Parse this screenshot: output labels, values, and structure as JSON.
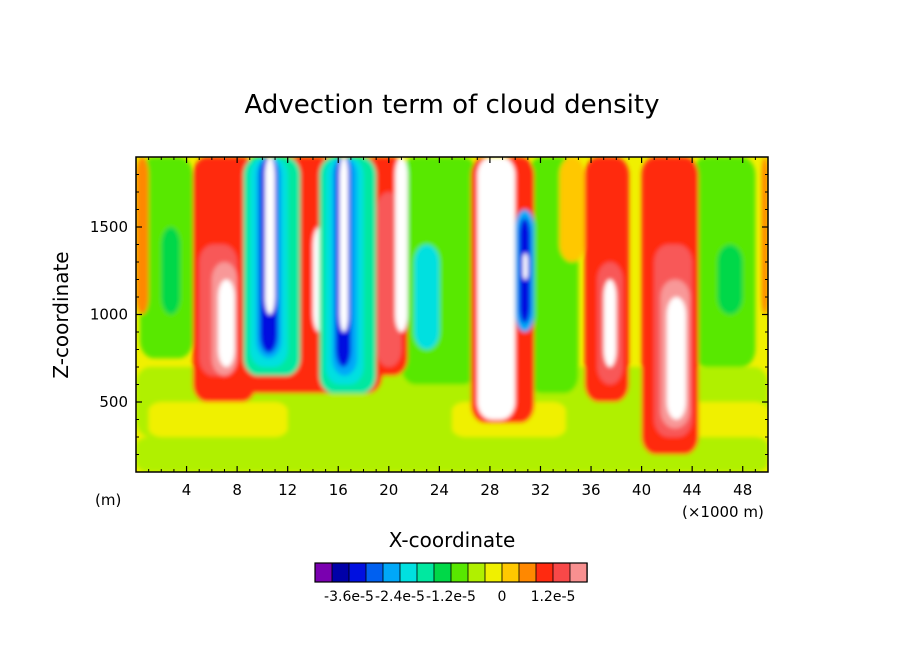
{
  "chart_data": {
    "type": "heatmap",
    "title": "Advection term of cloud density",
    "xlabel": "X-coordinate",
    "ylabel": "Z-coordinate",
    "x_unit_left": "(m)",
    "x_unit_right": "(×1000 m)",
    "xlim": [
      0,
      50
    ],
    "ylim": [
      100,
      1900
    ],
    "x_ticks": [
      4,
      8,
      12,
      16,
      20,
      24,
      28,
      32,
      36,
      40,
      44,
      48
    ],
    "y_ticks": [
      500,
      1000,
      1500
    ],
    "colorbar": {
      "colors": [
        "#7a00b0",
        "#0000a8",
        "#0010e0",
        "#0060f0",
        "#00a8f8",
        "#00e0e0",
        "#00e8a0",
        "#00d848",
        "#58e800",
        "#b0f000",
        "#f0f000",
        "#ffc800",
        "#ff8800",
        "#ff2a10",
        "#f84848",
        "#f89090"
      ],
      "labels": [
        "-3.6e-5",
        "-2.4e-5",
        "-1.2e-5",
        "0",
        "1.2e-5"
      ],
      "label_boundary_index": [
        2,
        5,
        8,
        11,
        14
      ]
    },
    "levels": {
      "white": "#ffffff",
      "pink": "#f89898",
      "salmon": "#f85858",
      "red": "#ff2a10",
      "orange": "#ff8800",
      "gold": "#ffc800",
      "yellow": "#f0f000",
      "lime": "#b0f000",
      "green": "#58e800",
      "dgreen": "#00d848",
      "teal": "#00e8a0",
      "cyan": "#00e0e0",
      "sky": "#00a8f8",
      "lblue": "#0060f0",
      "blue": "#0010e0",
      "navy": "#0000a8"
    },
    "field_background": "yellow",
    "features": [
      {
        "level": "lime",
        "x": [
          0,
          50
        ],
        "z": [
          100,
          300
        ]
      },
      {
        "level": "lime",
        "x": [
          0,
          50
        ],
        "z": [
          300,
          700
        ]
      },
      {
        "level": "yellow",
        "x": [
          1,
          12
        ],
        "z": [
          300,
          500
        ]
      },
      {
        "level": "yellow",
        "x": [
          25,
          34
        ],
        "z": [
          300,
          500
        ]
      },
      {
        "level": "yellow",
        "x": [
          43,
          50
        ],
        "z": [
          300,
          500
        ]
      },
      {
        "level": "green",
        "x": [
          0.3,
          4.5
        ],
        "z": [
          750,
          1900
        ]
      },
      {
        "level": "green",
        "x": [
          21,
          27
        ],
        "z": [
          600,
          1900
        ]
      },
      {
        "level": "green",
        "x": [
          31,
          35
        ],
        "z": [
          550,
          1900
        ]
      },
      {
        "level": "green",
        "x": [
          44,
          49
        ],
        "z": [
          700,
          1900
        ]
      },
      {
        "level": "dgreen",
        "x": [
          2,
          3.5
        ],
        "z": [
          1000,
          1500
        ]
      },
      {
        "level": "dgreen",
        "x": [
          46,
          48
        ],
        "z": [
          1000,
          1400
        ]
      },
      {
        "level": "gold",
        "x": [
          33.5,
          35.5
        ],
        "z": [
          1300,
          1900
        ]
      },
      {
        "level": "orange",
        "x": [
          0,
          1
        ],
        "z": [
          1000,
          1900
        ]
      },
      {
        "level": "orange",
        "x": [
          49.5,
          50
        ],
        "z": [
          1000,
          1900
        ]
      },
      {
        "level": "red",
        "x": [
          4.5,
          9.5
        ],
        "z": [
          500,
          1900
        ]
      },
      {
        "level": "red",
        "x": [
          8.5,
          19.5
        ],
        "z": [
          550,
          1900
        ]
      },
      {
        "level": "red",
        "x": [
          18,
          21.5
        ],
        "z": [
          650,
          1900
        ]
      },
      {
        "level": "red",
        "x": [
          26.5,
          31.5
        ],
        "z": [
          380,
          1900
        ]
      },
      {
        "level": "red",
        "x": [
          35.5,
          39
        ],
        "z": [
          500,
          1900
        ]
      },
      {
        "level": "red",
        "x": [
          40,
          44.5
        ],
        "z": [
          200,
          1900
        ]
      },
      {
        "level": "salmon",
        "x": [
          5,
          8
        ],
        "z": [
          650,
          1400
        ]
      },
      {
        "level": "salmon",
        "x": [
          19,
          21
        ],
        "z": [
          700,
          1700
        ]
      },
      {
        "level": "salmon",
        "x": [
          36.5,
          38.5
        ],
        "z": [
          600,
          1300
        ]
      },
      {
        "level": "salmon",
        "x": [
          41,
          44
        ],
        "z": [
          300,
          1400
        ]
      },
      {
        "level": "pink",
        "x": [
          6,
          8
        ],
        "z": [
          650,
          1300
        ]
      },
      {
        "level": "pink",
        "x": [
          41.5,
          43.8
        ],
        "z": [
          350,
          1200
        ]
      },
      {
        "level": "white",
        "x": [
          6.5,
          7.8
        ],
        "z": [
          700,
          1200
        ]
      },
      {
        "level": "white",
        "x": [
          42,
          43.5
        ],
        "z": [
          400,
          1100
        ]
      },
      {
        "level": "white",
        "x": [
          27,
          30
        ],
        "z": [
          400,
          1900
        ]
      },
      {
        "level": "white",
        "x": [
          20.5,
          21.5
        ],
        "z": [
          900,
          1900
        ]
      },
      {
        "level": "white",
        "x": [
          37,
          38
        ],
        "z": [
          700,
          1200
        ]
      },
      {
        "level": "white",
        "x": [
          14,
          15
        ],
        "z": [
          900,
          1500
        ]
      },
      {
        "level": "teal",
        "x": [
          8.5,
          13
        ],
        "z": [
          650,
          1900
        ]
      },
      {
        "level": "teal",
        "x": [
          14.5,
          19
        ],
        "z": [
          550,
          1900
        ]
      },
      {
        "level": "cyan",
        "x": [
          9,
          12
        ],
        "z": [
          700,
          1900
        ]
      },
      {
        "level": "cyan",
        "x": [
          15,
          18
        ],
        "z": [
          600,
          1900
        ]
      },
      {
        "level": "cyan",
        "x": [
          22,
          24
        ],
        "z": [
          800,
          1400
        ]
      },
      {
        "level": "sky",
        "x": [
          9.5,
          11.5
        ],
        "z": [
          750,
          1900
        ]
      },
      {
        "level": "sky",
        "x": [
          15.5,
          17.5
        ],
        "z": [
          650,
          1900
        ]
      },
      {
        "level": "sky",
        "x": [
          30,
          31.5
        ],
        "z": [
          900,
          1600
        ]
      },
      {
        "level": "blue",
        "x": [
          9.8,
          11.2
        ],
        "z": [
          780,
          1900
        ]
      },
      {
        "level": "blue",
        "x": [
          15.8,
          17
        ],
        "z": [
          700,
          1900
        ]
      },
      {
        "level": "blue",
        "x": [
          30.3,
          31.2
        ],
        "z": [
          950,
          1550
        ]
      },
      {
        "level": "white",
        "x": [
          10.2,
          11
        ],
        "z": [
          1000,
          1900
        ]
      },
      {
        "level": "white",
        "x": [
          16.1,
          16.8
        ],
        "z": [
          900,
          1900
        ]
      },
      {
        "level": "white",
        "x": [
          30.6,
          31
        ],
        "z": [
          1200,
          1350
        ]
      }
    ]
  }
}
